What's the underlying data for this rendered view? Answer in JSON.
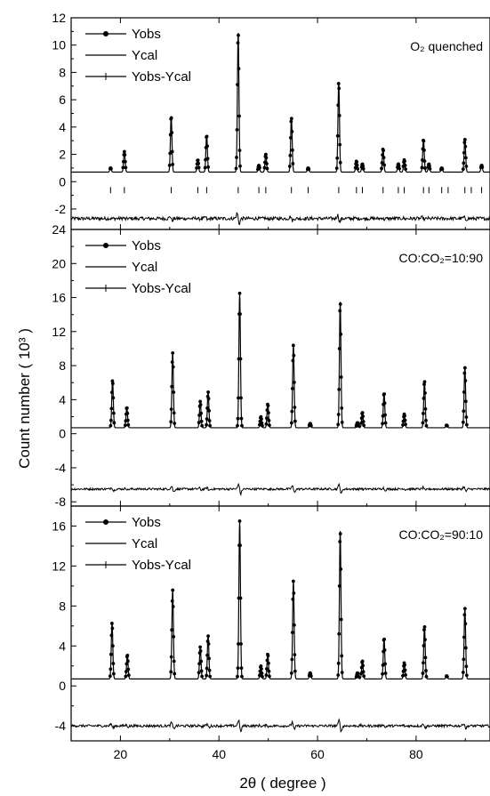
{
  "chart_data": {
    "type": "line",
    "x_axis": {
      "label": "2θ ( degree )",
      "range": [
        10,
        95
      ],
      "ticks": [
        20,
        40,
        60,
        80
      ]
    },
    "y_label": "Count number ( 10³ )",
    "legend_placement": "top-left",
    "legend_entries": [
      "Yobs",
      "Ycal",
      "Yobs-Ycal"
    ],
    "panels": [
      {
        "annotation": "O₂ quenched",
        "ylim": [
          -3.5,
          12
        ],
        "y_ticks": [
          -2,
          0,
          2,
          4,
          6,
          8,
          10,
          12
        ],
        "background": 0.7,
        "difference_offset": -2.7,
        "peaks": [
          [
            18,
            0.3
          ],
          [
            20.8,
            1.5
          ],
          [
            30.3,
            4.1
          ],
          [
            35.7,
            0.9
          ],
          [
            37.5,
            2.7
          ],
          [
            43.9,
            10.2
          ],
          [
            48.1,
            0.5
          ],
          [
            49.5,
            1.3
          ],
          [
            54.7,
            4.0
          ],
          [
            58.1,
            0.3
          ],
          [
            64.3,
            6.6
          ],
          [
            67.9,
            0.8
          ],
          [
            69.1,
            0.6
          ],
          [
            73.3,
            1.7
          ],
          [
            76.4,
            0.6
          ],
          [
            77.6,
            0.9
          ],
          [
            81.5,
            2.4
          ],
          [
            82.6,
            0.6
          ],
          [
            85.2,
            0.3
          ],
          [
            89.9,
            2.4
          ],
          [
            93.3,
            0.5
          ]
        ],
        "reflections": [
          18,
          20.8,
          30.3,
          35.7,
          37.5,
          43.9,
          48.1,
          49.5,
          54.7,
          58.1,
          64.3,
          67.9,
          69.1,
          73.3,
          76.4,
          77.6,
          81.5,
          82.6,
          85.2,
          86.5,
          89.9,
          91.2,
          93.3
        ]
      },
      {
        "annotation": "CO:CO₂=10:90",
        "ylim": [
          -8.5,
          24
        ],
        "y_ticks": [
          -8,
          -4,
          0,
          4,
          8,
          12,
          16,
          20,
          24
        ],
        "background": 0.7,
        "difference_offset": -6.5,
        "peaks": [
          [
            18.4,
            5.6
          ],
          [
            21.3,
            2.4
          ],
          [
            30.6,
            8.8
          ],
          [
            36.2,
            3.1
          ],
          [
            37.8,
            4.2
          ],
          [
            44.2,
            15.8
          ],
          [
            48.5,
            1.3
          ],
          [
            49.9,
            2.8
          ],
          [
            55.1,
            9.7
          ],
          [
            58.5,
            0.5
          ],
          [
            64.6,
            14.8
          ],
          [
            68.1,
            0.6
          ],
          [
            69.1,
            1.8
          ],
          [
            73.5,
            4.1
          ],
          [
            77.6,
            1.6
          ],
          [
            81.7,
            5.5
          ],
          [
            86.2,
            0.3
          ],
          [
            89.9,
            7.1
          ]
        ],
        "reflections": []
      },
      {
        "annotation": "CO:CO₂=90:10",
        "ylim": [
          -5.5,
          18
        ],
        "y_ticks": [
          -4,
          0,
          4,
          8,
          12,
          16
        ],
        "background": 0.7,
        "difference_offset": -4.0,
        "peaks": [
          [
            18.3,
            5.6
          ],
          [
            21.4,
            2.4
          ],
          [
            30.6,
            8.9
          ],
          [
            36.2,
            3.2
          ],
          [
            37.8,
            4.3
          ],
          [
            44.2,
            15.8
          ],
          [
            48.5,
            1.3
          ],
          [
            49.9,
            2.5
          ],
          [
            55.1,
            9.8
          ],
          [
            58.5,
            0.6
          ],
          [
            64.6,
            14.8
          ],
          [
            68.1,
            0.6
          ],
          [
            69.1,
            1.8
          ],
          [
            73.5,
            4.1
          ],
          [
            77.6,
            1.6
          ],
          [
            81.7,
            5.3
          ],
          [
            86.2,
            0.3
          ],
          [
            89.9,
            7.1
          ]
        ],
        "reflections": []
      }
    ]
  }
}
